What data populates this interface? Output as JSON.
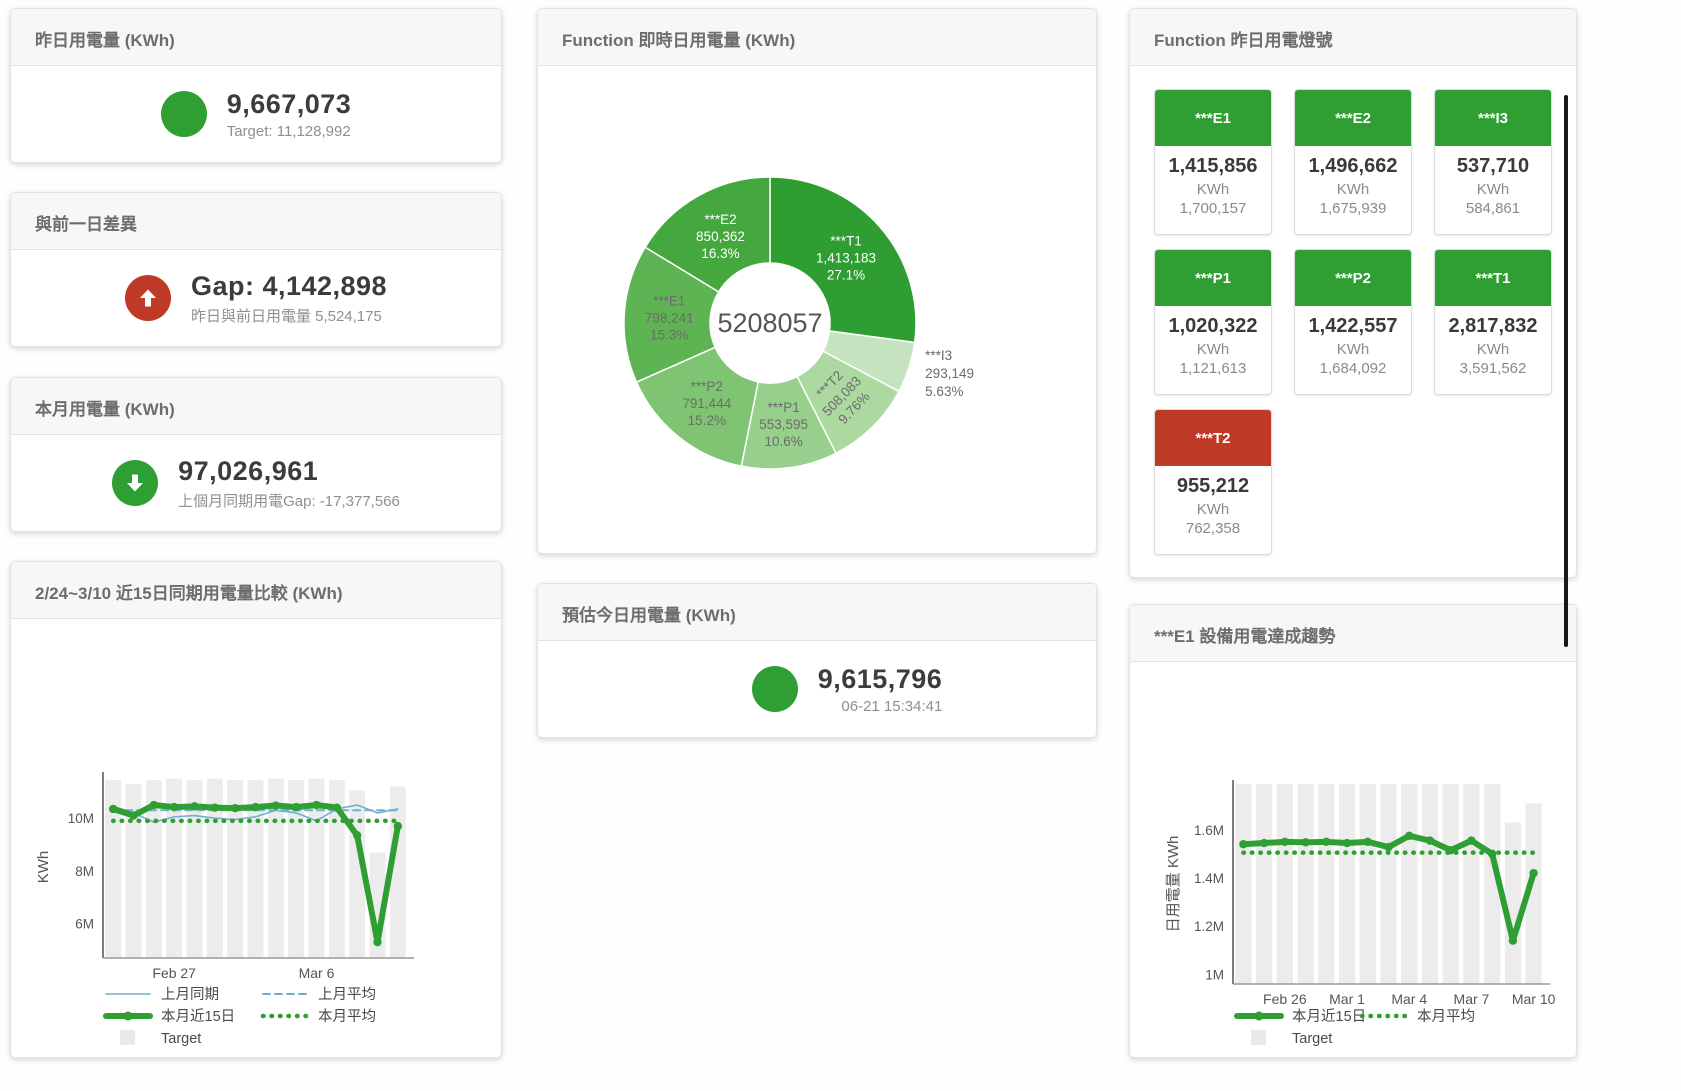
{
  "cards": {
    "yesterday": {
      "title": "昨日用電量 (KWh)",
      "value": "9,667,073",
      "subtitle": "Target: 11,128,992",
      "status_color": "#2f9e33"
    },
    "day_gap": {
      "title": "與前一日差異",
      "value": "Gap: 4,142,898",
      "subtitle": "昨日與前日用電量 5,524,175",
      "status_color": "#bf3a26"
    },
    "month": {
      "title": "本月用電量 (KWh)",
      "value": "97,026,961",
      "subtitle": "上個月同期用電Gap: -17,377,566",
      "status_color": "#2f9e33"
    },
    "forecast": {
      "title": "預估今日用電量 (KWh)",
      "value": "9,615,796",
      "subtitle": "06-21 15:34:41",
      "status_color": "#2f9e33"
    }
  },
  "lights": {
    "title": "Function 昨日用電燈號",
    "unit": "KWh",
    "colors": {
      "green": "#2f9e33",
      "red": "#bf3a26"
    },
    "tiles": [
      {
        "name": "***E1",
        "value": "1,415,856",
        "target": "1,700,157",
        "status": "green"
      },
      {
        "name": "***E2",
        "value": "1,496,662",
        "target": "1,675,939",
        "status": "green"
      },
      {
        "name": "***I3",
        "value": "537,710",
        "target": "584,861",
        "status": "green"
      },
      {
        "name": "***P1",
        "value": "1,020,322",
        "target": "1,121,613",
        "status": "green"
      },
      {
        "name": "***P2",
        "value": "1,422,557",
        "target": "1,684,092",
        "status": "green"
      },
      {
        "name": "***T1",
        "value": "2,817,832",
        "target": "3,591,562",
        "status": "green"
      },
      {
        "name": "***T2",
        "value": "955,212",
        "target": "762,358",
        "status": "red"
      }
    ]
  },
  "chart_data": [
    {
      "id": "donut-realtime",
      "type": "pie",
      "title": "Function 即時日用電量 (KWh)",
      "center_total": "5208057",
      "segments": [
        {
          "name": "***T1",
          "value": 1413183,
          "display": "1,413,183",
          "pct": "27.1%",
          "share": 27.1,
          "color": "#2f9e32",
          "label_color": "#ffffff",
          "label": "inside"
        },
        {
          "name": "***I3",
          "value": 293149,
          "display": "293,149",
          "pct": "5.63%",
          "share": 5.63,
          "color": "#c6e3bf",
          "label_color": "#6b6b6b",
          "label": "outside"
        },
        {
          "name": "***T2",
          "value": 508083,
          "display": "508,083",
          "pct": "9.76%",
          "share": 9.76,
          "color": "#abd9a0",
          "label_color": "#6b6b6b",
          "label": "inside",
          "rotate": -46
        },
        {
          "name": "***P1",
          "value": 553595,
          "display": "553,595",
          "pct": "10.6%",
          "share": 10.6,
          "color": "#97d08c",
          "label_color": "#6b6b6b",
          "label": "inside"
        },
        {
          "name": "***P2",
          "value": 791444,
          "display": "791,444",
          "pct": "15.2%",
          "share": 15.2,
          "color": "#7ec473",
          "label_color": "#6b6b6b",
          "label": "inside"
        },
        {
          "name": "***E1",
          "value": 798241,
          "display": "798,241",
          "pct": "15.3%",
          "share": 15.3,
          "color": "#5eb353",
          "label_color": "#6b6b6b",
          "label": "inside"
        },
        {
          "name": "***E2",
          "value": 850362,
          "display": "850,362",
          "pct": "16.3%",
          "share": 16.3,
          "color": "#45a83e",
          "label_color": "#ffffff",
          "label": "inside"
        }
      ]
    },
    {
      "id": "chart-compare",
      "type": "line",
      "title": "2/24~3/10 近15日同期用電量比較 (KWh)",
      "ylabel": "KWh",
      "ylim": [
        4700000,
        11600000
      ],
      "yticks": [
        {
          "v": 6000000,
          "label": "6M"
        },
        {
          "v": 8000000,
          "label": "8M"
        },
        {
          "v": 10000000,
          "label": "10M"
        }
      ],
      "xticks": [
        {
          "i": 3,
          "label": "Feb 27"
        },
        {
          "i": 10,
          "label": "Mar 6"
        }
      ],
      "target_bars": {
        "name": "Target",
        "color": "#ececec",
        "values": [
          11450000,
          11300000,
          11450000,
          11500000,
          11450000,
          11500000,
          11450000,
          11450000,
          11500000,
          11450000,
          11500000,
          11450000,
          11050000,
          8700000,
          11200000
        ]
      },
      "series": [
        {
          "name": "上月同期",
          "style": "solid",
          "color": "#72aed2",
          "width": 1.6,
          "marker": false,
          "values": [
            10450000,
            10200000,
            9850000,
            10050000,
            10100000,
            10000000,
            9950000,
            10050000,
            10300000,
            10200000,
            9900000,
            10350000,
            10500000,
            10200000,
            10350000
          ]
        },
        {
          "name": "上月平均",
          "style": "dashed",
          "color": "#72aed2",
          "width": 2,
          "marker": false,
          "values": [
            10300000,
            10300000,
            10300000,
            10300000,
            10300000,
            10300000,
            10300000,
            10300000,
            10300000,
            10300000,
            10300000,
            10300000,
            10300000,
            10300000,
            10300000
          ]
        },
        {
          "name": "本月近15日",
          "style": "solid",
          "color": "#2f9e33",
          "width": 6,
          "marker": true,
          "values": [
            10350000,
            10100000,
            10500000,
            10420000,
            10450000,
            10400000,
            10380000,
            10420000,
            10480000,
            10420000,
            10500000,
            10400000,
            9350000,
            5300000,
            9700000
          ]
        },
        {
          "name": "本月平均",
          "style": "dotted",
          "color": "#2f9e33",
          "width": 4.5,
          "marker": false,
          "values": [
            9900000,
            9900000,
            9900000,
            9900000,
            9900000,
            9900000,
            9900000,
            9900000,
            9900000,
            9900000,
            9900000,
            9900000,
            9900000,
            9900000,
            9900000
          ]
        }
      ],
      "legend": [
        [
          "上月同期",
          "上月平均"
        ],
        [
          "本月近15日",
          "本月平均"
        ],
        [
          "Target"
        ]
      ]
    },
    {
      "id": "chart-e1-trend",
      "type": "line",
      "title": "***E1 設備用電達成趨勢",
      "ylabel": "日用電量 KWh",
      "ylim": [
        960000,
        1790000
      ],
      "yticks": [
        {
          "v": 1000000,
          "label": "1M"
        },
        {
          "v": 1200000,
          "label": "1.2M"
        },
        {
          "v": 1400000,
          "label": "1.4M"
        },
        {
          "v": 1600000,
          "label": "1.6M"
        }
      ],
      "xticks": [
        {
          "i": 2,
          "label": "Feb 26"
        },
        {
          "i": 5,
          "label": "Mar 1"
        },
        {
          "i": 8,
          "label": "Mar 4"
        },
        {
          "i": 11,
          "label": "Mar 7"
        },
        {
          "i": 14,
          "label": "Mar 10"
        }
      ],
      "target_bars": {
        "name": "Target",
        "color": "#ececec",
        "values": [
          1790000,
          1790000,
          1790000,
          1790000,
          1790000,
          1790000,
          1790000,
          1790000,
          1790000,
          1790000,
          1790000,
          1790000,
          1790000,
          1630000,
          1710000
        ]
      },
      "series": [
        {
          "name": "本月近15日",
          "style": "solid",
          "color": "#2f9e33",
          "width": 6,
          "marker": true,
          "values": [
            1540000,
            1545000,
            1550000,
            1548000,
            1550000,
            1545000,
            1550000,
            1528000,
            1575000,
            1555000,
            1515000,
            1555000,
            1500000,
            1140000,
            1420000
          ]
        },
        {
          "name": "本月平均",
          "style": "dotted",
          "color": "#2f9e33",
          "width": 4.5,
          "marker": false,
          "values": [
            1505000,
            1505000,
            1505000,
            1505000,
            1505000,
            1505000,
            1505000,
            1505000,
            1505000,
            1505000,
            1505000,
            1505000,
            1505000,
            1505000,
            1505000
          ]
        }
      ],
      "legend": [
        [
          "本月近15日",
          "本月平均"
        ],
        [
          "Target"
        ]
      ]
    }
  ]
}
